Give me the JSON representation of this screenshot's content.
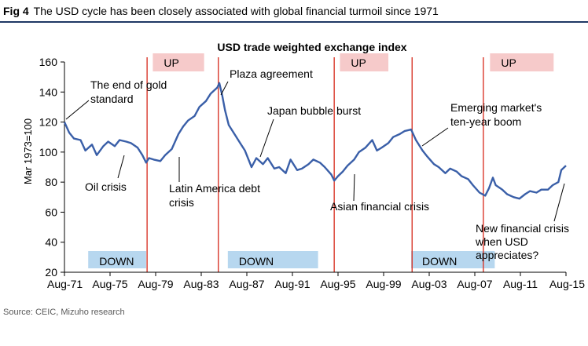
{
  "figure": {
    "label": "Fig 4",
    "caption": "The USD cycle has been closely associated with global financial turmoil since 1971",
    "source": "Source: CEIC, Mizuho research"
  },
  "chart_data": {
    "type": "line",
    "title": "USD trade weighted exchange index",
    "ylabel": "Mar 1973=100",
    "xlabel": "",
    "ylim": [
      20,
      160
    ],
    "yticks": [
      20,
      40,
      60,
      80,
      100,
      120,
      140,
      160
    ],
    "xlim": [
      "1971-08",
      "2015-08"
    ],
    "xtick_labels": [
      "Aug-71",
      "Aug-75",
      "Aug-79",
      "Aug-83",
      "Aug-87",
      "Aug-91",
      "Aug-95",
      "Aug-99",
      "Aug-03",
      "Aug-07",
      "Aug-11",
      "Aug-15"
    ],
    "grid": false,
    "line_color": "#3a5fa8",
    "series": [
      {
        "x": [
          "1971-08",
          "1972-01",
          "1972-06",
          "1973-01",
          "1973-06",
          "1974-01",
          "1974-06",
          "1975-01",
          "1975-06",
          "1976-01",
          "1976-06",
          "1977-01",
          "1977-06",
          "1978-01",
          "1978-06",
          "1978-10",
          "1979-01",
          "1979-06",
          "1980-01",
          "1980-06",
          "1981-01",
          "1981-08",
          "1982-01",
          "1982-06",
          "1983-01",
          "1983-06",
          "1984-01",
          "1984-06",
          "1985-01",
          "1985-03",
          "1985-06",
          "1985-09",
          "1986-01",
          "1986-06",
          "1987-01",
          "1987-06",
          "1988-01",
          "1988-06",
          "1989-01",
          "1989-06",
          "1990-01",
          "1990-06",
          "1991-01",
          "1991-06",
          "1992-01",
          "1992-06",
          "1993-01",
          "1993-06",
          "1994-01",
          "1994-06",
          "1995-01",
          "1995-04",
          "1995-08",
          "1996-01",
          "1996-06",
          "1997-01",
          "1997-06",
          "1998-01",
          "1998-08",
          "1999-01",
          "1999-06",
          "2000-01",
          "2000-06",
          "2001-01",
          "2001-06",
          "2002-01",
          "2002-06",
          "2003-01",
          "2003-06",
          "2004-01",
          "2004-06",
          "2005-01",
          "2005-06",
          "2006-01",
          "2006-06",
          "2007-01",
          "2007-06",
          "2008-01",
          "2008-04",
          "2008-07",
          "2008-11",
          "2009-03",
          "2009-06",
          "2010-01",
          "2010-06",
          "2011-01",
          "2011-07",
          "2012-01",
          "2012-06",
          "2013-01",
          "2013-06",
          "2014-01",
          "2014-06",
          "2014-12",
          "2015-03",
          "2015-08"
        ],
        "y": [
          120,
          113,
          109,
          108,
          101,
          105,
          98,
          104,
          107,
          104,
          108,
          107,
          106,
          103,
          98,
          93,
          96,
          95,
          94,
          98,
          102,
          112,
          117,
          121,
          124,
          130,
          134,
          139,
          143,
          146,
          138,
          128,
          118,
          113,
          106,
          101,
          90,
          96,
          92,
          96,
          89,
          90,
          86,
          95,
          88,
          89,
          92,
          95,
          93,
          90,
          85,
          81,
          84,
          87,
          91,
          95,
          100,
          103,
          108,
          101,
          103,
          106,
          110,
          112,
          114,
          115,
          108,
          101,
          97,
          92,
          90,
          86,
          89,
          87,
          84,
          82,
          78,
          73,
          72,
          71,
          76,
          83,
          78,
          75,
          72,
          70,
          69,
          72,
          74,
          73,
          75,
          75,
          78,
          80,
          88,
          91
        ]
      }
    ],
    "regime_labels": [
      {
        "label": "UP",
        "start": "1979-05",
        "end": "1983-11"
      },
      {
        "label": "UP",
        "start": "1995-10",
        "end": "2000-01"
      },
      {
        "label": "UP",
        "start": "2008-12",
        "end": "2014-07"
      },
      {
        "label": "DOWN",
        "start": "1973-09",
        "end": "1978-10"
      },
      {
        "label": "DOWN",
        "start": "1985-12",
        "end": "1993-11"
      },
      {
        "label": "DOWN",
        "start": "2002-01",
        "end": "2009-05"
      }
    ],
    "regime_dividers": [
      "1978-11",
      "1985-02",
      "1995-04",
      "2002-02",
      "2008-05"
    ],
    "annotations": [
      {
        "text": "The end of gold standard",
        "x": "1972-01",
        "y": 124
      },
      {
        "text": "Oil crisis",
        "x": "1975-06",
        "y": 83
      },
      {
        "text": "Plaza agreement",
        "x": "1985-03",
        "y": 145
      },
      {
        "text": "Latin America debt crisis",
        "x": "1981-05",
        "y": 86
      },
      {
        "text": "Japan bubble burst",
        "x": "1988-02",
        "y": 91
      },
      {
        "text": "Asian financial crisis",
        "x": "1997-09",
        "y": 86
      },
      {
        "text": "Emerging market's ten-year boom",
        "x": "2001-10",
        "y": 108
      },
      {
        "text": "New financial crisis when USD appreciates?",
        "x": "2015-02",
        "y": 77
      }
    ]
  }
}
